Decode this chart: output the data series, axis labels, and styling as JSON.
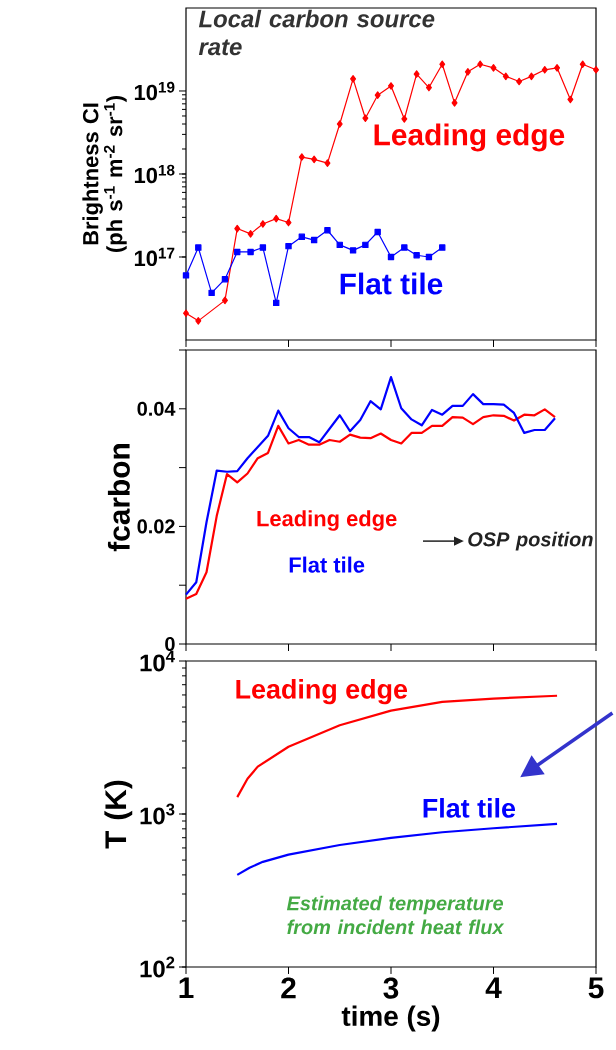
{
  "chart_data": [
    {
      "type": "line",
      "ylabel": "Brightness CI (ph s$^{-1}$ m$^{-2}$ sr$^{-1}$)",
      "log": true,
      "xlim": [
        1,
        5
      ],
      "xticks": [
        1,
        2,
        3,
        4,
        5
      ],
      "ylim": [
        1e+16,
        1e+20
      ],
      "yticks": [
        {
          "value": 1e+17,
          "label": "10$^{17}$"
        },
        {
          "value": 1e+18,
          "label": "10$^{18}$"
        },
        {
          "value": 1e+19,
          "label": "10$^{19}$"
        }
      ],
      "tick_labels": "y",
      "annotations": [
        "Local carbon source rate"
      ],
      "series": [
        {
          "name": "Leading edge",
          "color": "#ff0000",
          "marker": "diamond",
          "x": [
            1.0,
            1.12,
            1.38,
            1.5,
            1.63,
            1.75,
            1.88,
            2.0,
            2.13,
            2.25,
            2.38,
            2.5,
            2.63,
            2.75,
            2.87,
            3.0,
            3.13,
            3.25,
            3.37,
            3.5,
            3.62,
            3.75,
            3.87,
            4.0,
            4.12,
            4.25,
            4.37,
            4.5,
            4.62,
            4.75,
            4.87,
            5.0
          ],
          "values": [
            2.1e+16,
            1.7e+16,
            3e+16,
            2.2e+17,
            1.9e+17,
            2.5e+17,
            2.9e+17,
            2.6e+17,
            1.6e+18,
            1.5e+18,
            1.35e+18,
            4e+18,
            1.4e+19,
            4.7e+18,
            8.9e+18,
            1.15e+19,
            4.6e+18,
            1.6e+19,
            1.1e+19,
            2.1e+19,
            7.2e+18,
            1.7e+19,
            2.1e+19,
            1.9e+19,
            1.5e+19,
            1.3e+19,
            1.5e+19,
            1.8e+19,
            1.9e+19,
            7.9e+18,
            2.1e+19,
            1.8e+19
          ]
        },
        {
          "name": "Flat tile",
          "color": "#0000ff",
          "marker": "square",
          "x": [
            1.0,
            1.12,
            1.25,
            1.38,
            1.5,
            1.63,
            1.75,
            1.88,
            2.0,
            2.13,
            2.25,
            2.38,
            2.5,
            2.63,
            2.75,
            2.87,
            3.0,
            3.13,
            3.25,
            3.37,
            3.5
          ],
          "values": [
            6e+16,
            1.3e+17,
            3.7e+16,
            5.4e+16,
            1.15e+17,
            1.15e+17,
            1.3e+17,
            2.8e+16,
            1.35e+17,
            1.75e+17,
            1.6e+17,
            2.1e+17,
            1.4e+17,
            1.2e+17,
            1.4e+17,
            2e+17,
            1e+17,
            1.3e+17,
            1.05e+17,
            1e+17,
            1.3e+17
          ]
        }
      ]
    },
    {
      "type": "line",
      "ylabel": "fcarbon",
      "xlim": [
        1,
        5
      ],
      "xticks": [
        1,
        2,
        3,
        4,
        5
      ],
      "ylim": [
        0,
        0.05
      ],
      "yticks": [
        0,
        {
          "value": 0.01,
          "label": null
        },
        0.02,
        {
          "value": 0.03,
          "label": null
        },
        0.04,
        {
          "value": 0.05,
          "label": null
        }
      ],
      "tick_labels": "y",
      "annotations": [
        "OSP position"
      ],
      "series": [
        {
          "name": "Leading edge",
          "color": "#ff0000",
          "x": [
            1.0,
            1.1,
            1.2,
            1.3,
            1.4,
            1.5,
            1.6,
            1.7,
            1.8,
            1.9,
            2.0,
            2.1,
            2.2,
            2.3,
            2.4,
            2.5,
            2.6,
            2.7,
            2.8,
            2.9,
            3.0,
            3.1,
            3.2,
            3.3,
            3.4,
            3.5,
            3.6,
            3.7,
            3.8,
            3.9,
            4.0,
            4.1,
            4.2,
            4.3,
            4.4,
            4.5,
            4.6
          ],
          "values": [
            0.0077,
            0.0085,
            0.0122,
            0.0218,
            0.0289,
            0.0275,
            0.029,
            0.0316,
            0.0325,
            0.0371,
            0.0341,
            0.0347,
            0.0339,
            0.0339,
            0.0347,
            0.0344,
            0.0356,
            0.0351,
            0.035,
            0.0358,
            0.0347,
            0.0341,
            0.0359,
            0.0359,
            0.0371,
            0.0371,
            0.0386,
            0.0385,
            0.0374,
            0.0386,
            0.0389,
            0.0388,
            0.038,
            0.039,
            0.0389,
            0.0399,
            0.0386
          ]
        },
        {
          "name": "Flat tile",
          "color": "#0000ff",
          "x": [
            1.0,
            1.1,
            1.2,
            1.3,
            1.4,
            1.5,
            1.6,
            1.7,
            1.8,
            1.9,
            2.0,
            2.1,
            2.2,
            2.3,
            2.4,
            2.5,
            2.6,
            2.7,
            2.8,
            2.9,
            3.0,
            3.1,
            3.2,
            3.3,
            3.4,
            3.5,
            3.6,
            3.7,
            3.8,
            3.9,
            4.0,
            4.1,
            4.2,
            4.3,
            4.4,
            4.5,
            4.6
          ],
          "values": [
            0.0084,
            0.0105,
            0.0207,
            0.0295,
            0.0293,
            0.0294,
            0.0316,
            0.0335,
            0.0354,
            0.0397,
            0.0367,
            0.0352,
            0.0352,
            0.0343,
            0.0366,
            0.0389,
            0.0362,
            0.0381,
            0.0413,
            0.0399,
            0.0454,
            0.0401,
            0.0382,
            0.0372,
            0.0398,
            0.039,
            0.0405,
            0.0405,
            0.0425,
            0.0408,
            0.0408,
            0.0407,
            0.0393,
            0.0359,
            0.0364,
            0.0364,
            0.0384
          ]
        }
      ]
    },
    {
      "type": "line",
      "xlabel": "time (s)",
      "ylabel": "T (K)",
      "log": true,
      "xlim": [
        1,
        5
      ],
      "xticks": [
        1,
        2,
        3,
        4,
        5
      ],
      "ylim": [
        100,
        10000
      ],
      "yticks": [
        {
          "value": 100,
          "label": "10$^{2}$"
        },
        {
          "value": 1000,
          "label": "10$^{3}$"
        },
        {
          "value": 10000,
          "label": "10$^{4}$"
        }
      ],
      "annotations": [
        "Estimated temperature from incident heat flux"
      ],
      "series": [
        {
          "name": "Leading edge",
          "color": "#ff0000",
          "x": [
            1.5,
            1.6,
            1.7,
            2.0,
            2.5,
            3.0,
            3.5,
            4.0,
            4.62
          ],
          "values": [
            1290,
            1700,
            2040,
            2750,
            3800,
            4740,
            5400,
            5680,
            5930
          ]
        },
        {
          "name": "Flat tile",
          "color": "#0000ff",
          "x": [
            1.5,
            1.62,
            1.75,
            2.0,
            2.5,
            3.0,
            3.5,
            4.0,
            4.62
          ],
          "values": [
            400,
            445,
            487,
            543,
            627,
            698,
            760,
            807,
            863
          ]
        }
      ]
    }
  ]
}
